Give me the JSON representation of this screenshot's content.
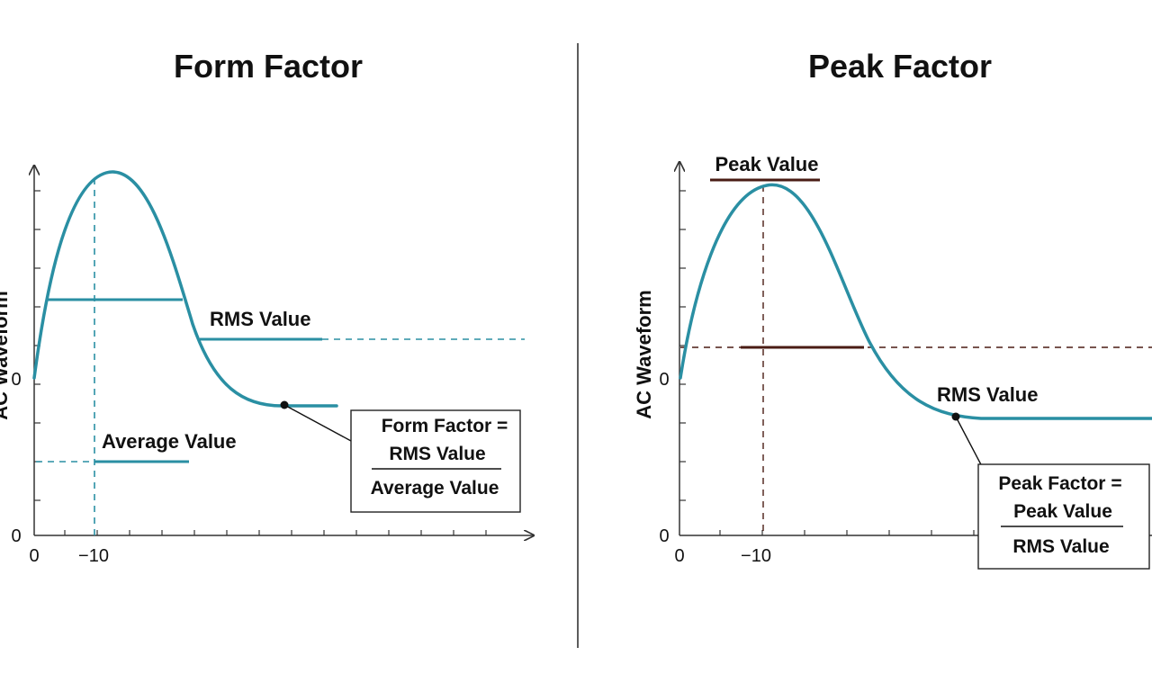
{
  "colors": {
    "curve": "#2a8fa3",
    "peak_marker": "#4a1c14",
    "axis": "#333333",
    "text": "#111111"
  },
  "left_panel": {
    "title": "Form Factor",
    "y_axis_label": "AC Waveform",
    "y_tick_zero": "0",
    "y_tick_origin": "0",
    "x_tick_origin": "0",
    "x_tick_peak": "−10",
    "rms_label": "RMS Value",
    "average_label": "Average Value",
    "formula": {
      "lhs": "Form Factor =",
      "numerator": "RMS Value",
      "denominator": "Average Value"
    }
  },
  "divider": "vertical-line",
  "right_panel": {
    "title": "Peak Factor",
    "y_axis_label": "AC Waveform",
    "y_tick_zero": "0",
    "y_tick_origin": "0",
    "x_tick_origin": "0",
    "x_tick_peak": "−10",
    "peak_label": "Peak Value",
    "rms_label": "RMS Value",
    "formula": {
      "lhs": "Peak Factor =",
      "numerator": "Peak Value",
      "denominator": "RMS Value"
    }
  }
}
